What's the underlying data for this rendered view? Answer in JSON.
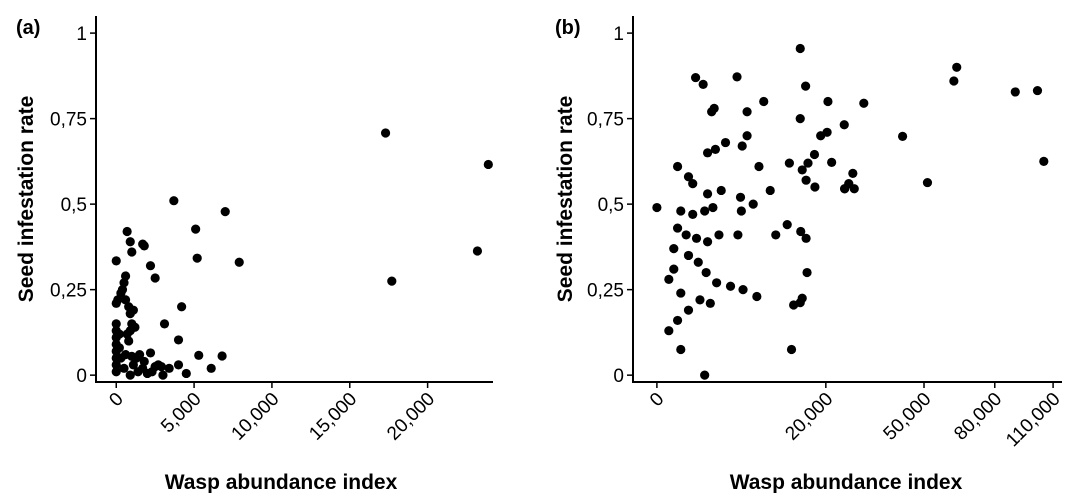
{
  "chart_data": [
    {
      "type": "scatter",
      "panel_label": "(a)",
      "xlabel": "Wasp abundance index",
      "ylabel": "Seed infestation rate",
      "xlim": [
        -1300,
        24200
      ],
      "ylim": [
        -0.02,
        1.05
      ],
      "xticks": [
        0,
        5000,
        10000,
        15000,
        20000
      ],
      "xtick_labels": [
        "0",
        "5,000",
        "10,000",
        "15,000",
        "20,000"
      ],
      "yticks": [
        0,
        0.25,
        0.5,
        0.75,
        1
      ],
      "ytick_labels": [
        "0",
        "0,25",
        "0,5",
        "0,75",
        "1"
      ],
      "grid": false,
      "points": [
        [
          17300,
          0.708
        ],
        [
          23900,
          0.616
        ],
        [
          23200,
          0.363
        ],
        [
          17700,
          0.275
        ],
        [
          3700,
          0.51
        ],
        [
          7000,
          0.478
        ],
        [
          5100,
          0.427
        ],
        [
          5200,
          0.342
        ],
        [
          7900,
          0.33
        ],
        [
          4200,
          0.2
        ],
        [
          4000,
          0.103
        ],
        [
          3100,
          0.15
        ],
        [
          5300,
          0.058
        ],
        [
          6800,
          0.056
        ],
        [
          4000,
          0.03
        ],
        [
          6100,
          0.02
        ],
        [
          4500,
          0.005
        ],
        [
          3400,
          0.02
        ],
        [
          0,
          0.334
        ],
        [
          700,
          0.42
        ],
        [
          900,
          0.39
        ],
        [
          1000,
          0.36
        ],
        [
          1700,
          0.383
        ],
        [
          1800,
          0.378
        ],
        [
          2200,
          0.32
        ],
        [
          2500,
          0.284
        ],
        [
          600,
          0.29
        ],
        [
          500,
          0.27
        ],
        [
          400,
          0.25
        ],
        [
          300,
          0.24
        ],
        [
          100,
          0.22
        ],
        [
          0,
          0.21
        ],
        [
          600,
          0.22
        ],
        [
          800,
          0.2
        ],
        [
          1100,
          0.19
        ],
        [
          900,
          0.18
        ],
        [
          1000,
          0.15
        ],
        [
          1200,
          0.14
        ],
        [
          900,
          0.13
        ],
        [
          700,
          0.12
        ],
        [
          800,
          0.1
        ],
        [
          0,
          0.15
        ],
        [
          0,
          0.13
        ],
        [
          0,
          0.11
        ],
        [
          0,
          0.09
        ],
        [
          0,
          0.07
        ],
        [
          0,
          0.05
        ],
        [
          0,
          0.03
        ],
        [
          0,
          0.01
        ],
        [
          200,
          0.12
        ],
        [
          200,
          0.08
        ],
        [
          300,
          0.05
        ],
        [
          600,
          0.06
        ],
        [
          1000,
          0.055
        ],
        [
          1300,
          0.05
        ],
        [
          1500,
          0.06
        ],
        [
          1800,
          0.04
        ],
        [
          2200,
          0.065
        ],
        [
          2500,
          0.025
        ],
        [
          1700,
          0.02
        ],
        [
          1400,
          0.01
        ],
        [
          2000,
          0.005
        ],
        [
          2700,
          0.03
        ],
        [
          2900,
          0.025
        ],
        [
          1100,
          0.03
        ],
        [
          500,
          0.02
        ],
        [
          900,
          0.0
        ],
        [
          2300,
          0.01
        ],
        [
          3000,
          0.0
        ]
      ]
    },
    {
      "type": "scatter",
      "panel_label": "(b)",
      "xlabel": "Wasp abundance index",
      "ylabel": "Seed infestation rate",
      "xscale": "sqrt",
      "xlim": [
        -400,
        115000
      ],
      "ylim": [
        -0.02,
        1.05
      ],
      "xticks": [
        0,
        20000,
        50000,
        80000,
        110000
      ],
      "xtick_labels": [
        "0",
        "20,000",
        "50,000",
        "80,000",
        "110,000"
      ],
      "yticks": [
        0,
        0.25,
        0.5,
        0.75,
        1
      ],
      "ytick_labels": [
        "0",
        "0,25",
        "0,5",
        "0,75",
        "1"
      ],
      "grid": false,
      "points": [
        [
          14400,
          0.955
        ],
        [
          63000,
          0.9
        ],
        [
          61800,
          0.86
        ],
        [
          90000,
          0.828
        ],
        [
          101500,
          0.832
        ],
        [
          104900,
          0.625
        ],
        [
          1050,
          0.87
        ],
        [
          1500,
          0.85
        ],
        [
          4500,
          0.872
        ],
        [
          15500,
          0.845
        ],
        [
          8000,
          0.8
        ],
        [
          20500,
          0.8
        ],
        [
          2300,
          0.78
        ],
        [
          2100,
          0.77
        ],
        [
          5700,
          0.77
        ],
        [
          14400,
          0.75
        ],
        [
          30000,
          0.795
        ],
        [
          24600,
          0.732
        ],
        [
          42300,
          0.698
        ],
        [
          20300,
          0.71
        ],
        [
          18800,
          0.7
        ],
        [
          17400,
          0.645
        ],
        [
          5700,
          0.7
        ],
        [
          2400,
          0.66
        ],
        [
          1800,
          0.65
        ],
        [
          3300,
          0.68
        ],
        [
          5100,
          0.67
        ],
        [
          7300,
          0.61
        ],
        [
          12300,
          0.62
        ],
        [
          14800,
          0.6
        ],
        [
          16000,
          0.62
        ],
        [
          21400,
          0.622
        ],
        [
          15600,
          0.57
        ],
        [
          17500,
          0.55
        ],
        [
          51300,
          0.563
        ],
        [
          26900,
          0.59
        ],
        [
          25800,
          0.56
        ],
        [
          24700,
          0.545
        ],
        [
          27300,
          0.545
        ],
        [
          24700,
          0.545
        ],
        [
          300,
          0.61
        ],
        [
          700,
          0.58
        ],
        [
          900,
          0.56
        ],
        [
          1800,
          0.53
        ],
        [
          2900,
          0.54
        ],
        [
          4900,
          0.52
        ],
        [
          6500,
          0.5
        ],
        [
          9000,
          0.54
        ],
        [
          0,
          0.49
        ],
        [
          400,
          0.48
        ],
        [
          900,
          0.47
        ],
        [
          1600,
          0.48
        ],
        [
          2200,
          0.49
        ],
        [
          5000,
          0.48
        ],
        [
          300,
          0.43
        ],
        [
          600,
          0.41
        ],
        [
          1100,
          0.4
        ],
        [
          1800,
          0.39
        ],
        [
          2700,
          0.41
        ],
        [
          4600,
          0.41
        ],
        [
          11900,
          0.44
        ],
        [
          9900,
          0.41
        ],
        [
          14500,
          0.42
        ],
        [
          15600,
          0.4
        ],
        [
          200,
          0.37
        ],
        [
          700,
          0.35
        ],
        [
          1200,
          0.33
        ],
        [
          1700,
          0.3
        ],
        [
          2500,
          0.27
        ],
        [
          3800,
          0.26
        ],
        [
          5200,
          0.25
        ],
        [
          7000,
          0.23
        ],
        [
          200,
          0.31
        ],
        [
          100,
          0.28
        ],
        [
          400,
          0.24
        ],
        [
          1300,
          0.22
        ],
        [
          2000,
          0.21
        ],
        [
          13100,
          0.205
        ],
        [
          14400,
          0.212
        ],
        [
          15800,
          0.3
        ],
        [
          14800,
          0.225
        ],
        [
          700,
          0.19
        ],
        [
          300,
          0.16
        ],
        [
          100,
          0.13
        ],
        [
          400,
          0.075
        ],
        [
          12700,
          0.075
        ],
        [
          1600,
          0.0
        ]
      ]
    }
  ]
}
